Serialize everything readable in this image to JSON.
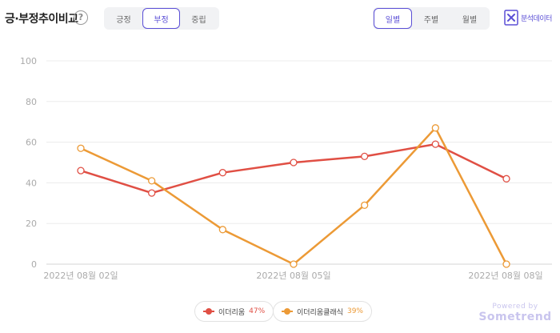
{
  "header": {
    "title": "긍·부정추이비교",
    "help_symbol": "?",
    "sentiment_tabs": [
      "긍정",
      "부정",
      "중립"
    ],
    "sentiment_active": 1,
    "period_tabs": [
      "일별",
      "주별",
      "월별"
    ],
    "period_active": 0,
    "export_label": "분석데이터"
  },
  "legend": [
    {
      "name": "이더리움",
      "percent": "47%",
      "color": "#e04f44"
    },
    {
      "name": "이더리움클래식",
      "percent": "39%",
      "color": "#ec9a36"
    }
  ],
  "branding": {
    "powered_by": "Powered by",
    "brand": "Sometrend"
  },
  "chart_data": {
    "type": "line",
    "x": [
      "2022-08-02",
      "2022-08-03",
      "2022-08-04",
      "2022-08-05",
      "2022-08-06",
      "2022-08-07",
      "2022-08-08"
    ],
    "x_tick_labels": [
      "2022년 08월 02일",
      "2022년 08월 05일",
      "2022년 08월 08일"
    ],
    "y_ticks": [
      0,
      20,
      40,
      60,
      80,
      100
    ],
    "ylim": [
      0,
      100
    ],
    "grid": true,
    "legend_position": "bottom",
    "series": [
      {
        "name": "이더리움",
        "color": "#e04f44",
        "values": [
          46,
          35,
          45,
          50,
          53,
          59,
          42
        ]
      },
      {
        "name": "이더리움클래식",
        "color": "#ec9a36",
        "values": [
          57,
          41,
          17,
          0,
          29,
          67,
          0
        ]
      }
    ]
  }
}
